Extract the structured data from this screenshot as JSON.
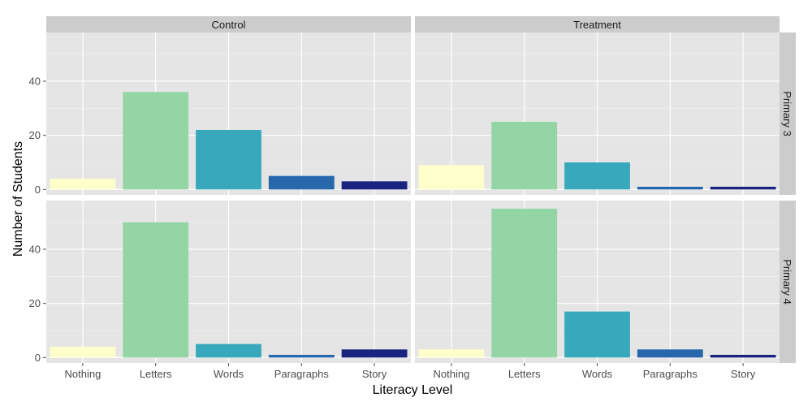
{
  "chart_data": {
    "type": "bar",
    "xlabel": "Literacy Level",
    "ylabel": "Number of Students",
    "categories": [
      "Nothing",
      "Letters",
      "Words",
      "Paragraphs",
      "Story"
    ],
    "category_colors": [
      "#FFFFCC",
      "#93D5A5",
      "#38A9BC",
      "#2767AB",
      "#1A237F"
    ],
    "columns": [
      "Control",
      "Treatment"
    ],
    "rows": [
      "Primary 3",
      "Primary 4"
    ],
    "ylim": [
      -2,
      58
    ],
    "yticks": [
      0,
      20,
      40
    ],
    "grid": true,
    "legend": "none",
    "panels": [
      {
        "column": "Control",
        "row": "Primary 3",
        "values": [
          4,
          36,
          22,
          5,
          3
        ]
      },
      {
        "column": "Treatment",
        "row": "Primary 3",
        "values": [
          9,
          25,
          10,
          1,
          1
        ]
      },
      {
        "column": "Control",
        "row": "Primary 4",
        "values": [
          4,
          50,
          5,
          1,
          3
        ]
      },
      {
        "column": "Treatment",
        "row": "Primary 4",
        "values": [
          3,
          55,
          17,
          3,
          1
        ]
      }
    ]
  },
  "colors": {
    "panel_background": "#E5E5E5",
    "major_grid": "#FFFFFF",
    "minor_grid": "#F2F2F2",
    "strip_background": "#CCCCCC"
  }
}
